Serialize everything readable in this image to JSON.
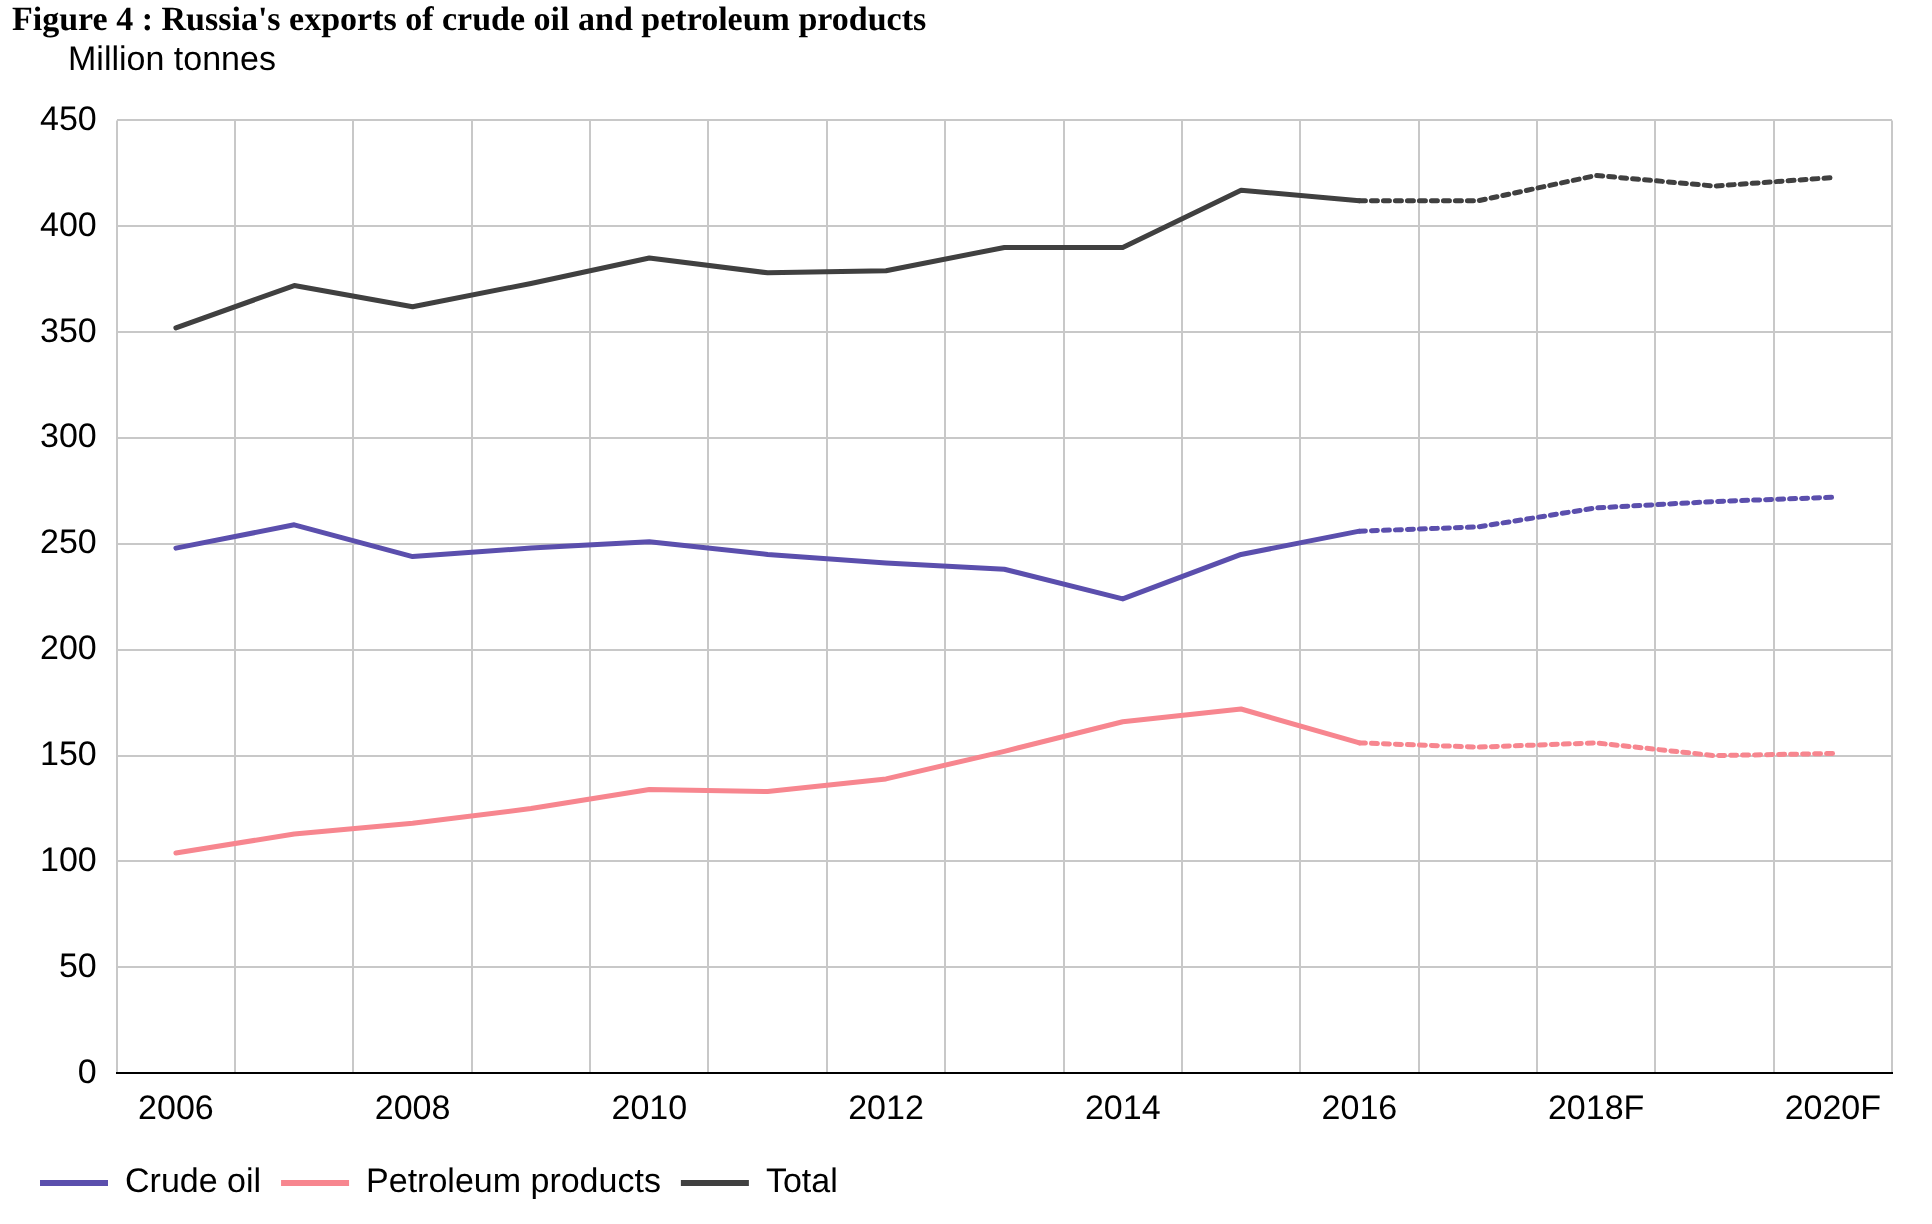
{
  "chart_data": {
    "type": "line",
    "title": "Figure 4 : Russia's exports of crude oil and petroleum products",
    "ylabel": "Million tonnes",
    "categories": [
      "2006",
      null,
      "2008",
      null,
      "2010",
      null,
      "2012",
      null,
      "2014",
      null,
      "2016",
      null,
      "2018F",
      null,
      "2020F"
    ],
    "series": [
      {
        "name": "Crude oil",
        "color": "#5b4fad",
        "line_style": "solid",
        "values": [
          248,
          259,
          244,
          248,
          251,
          245,
          241,
          238,
          224,
          245,
          256,
          null,
          null,
          null,
          null
        ]
      },
      {
        "name": "Petroleum products",
        "color": "#f7868f",
        "line_style": "solid",
        "values": [
          104,
          113,
          118,
          125,
          134,
          133,
          139,
          152,
          166,
          172,
          156,
          null,
          null,
          null,
          null
        ]
      },
      {
        "name": "Total",
        "color": "#404040",
        "line_style": "solid",
        "values": [
          352,
          372,
          362,
          373,
          385,
          378,
          379,
          390,
          390,
          417,
          412,
          null,
          null,
          null,
          null
        ]
      },
      {
        "color": "#5b4fad",
        "line_style": "dotted",
        "values": [
          null,
          null,
          null,
          null,
          null,
          null,
          null,
          null,
          null,
          null,
          256,
          258,
          267,
          270,
          272
        ]
      },
      {
        "color": "#f7868f",
        "line_style": "dotted",
        "values": [
          null,
          null,
          null,
          null,
          null,
          null,
          null,
          null,
          null,
          null,
          156,
          154,
          156,
          150,
          151
        ]
      },
      {
        "color": "#404040",
        "line_style": "dotted",
        "values": [
          null,
          null,
          null,
          null,
          null,
          null,
          null,
          null,
          null,
          null,
          412,
          412,
          424,
          419,
          423
        ]
      }
    ],
    "ylim": [
      0,
      450
    ],
    "yticks": [
      0,
      50,
      100,
      150,
      200,
      250,
      300,
      350,
      400,
      450
    ],
    "grid": true,
    "legend": "bottom",
    "marker": "none"
  }
}
